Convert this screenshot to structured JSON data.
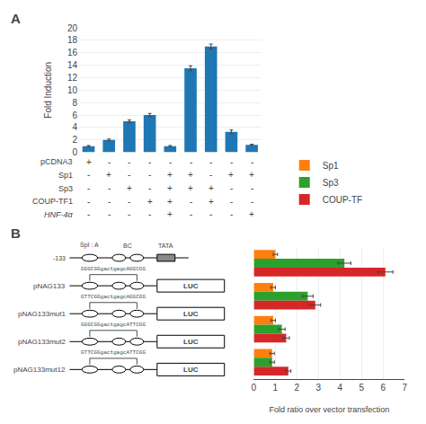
{
  "chart_data": [
    {
      "type": "bar",
      "title": "A",
      "categories": [
        null,
        null,
        null,
        null,
        null,
        null,
        null,
        null,
        null
      ],
      "values": [
        1.0,
        2.0,
        5.0,
        6.0,
        1.0,
        13.5,
        17.0,
        3.3,
        1.2
      ],
      "errors": [
        0.1,
        0.15,
        0.2,
        0.25,
        0.1,
        0.4,
        0.4,
        0.3,
        0.1
      ],
      "ylabel": "Fold Induction",
      "ylim": [
        0,
        20
      ],
      "yticks": [
        0,
        2,
        4,
        6,
        8,
        10,
        12,
        14,
        16,
        18,
        20
      ],
      "grid": true,
      "tick_labels": "y",
      "conditions": [
        {
          "label": "pCDNA3",
          "signs": [
            "+",
            "-",
            "-",
            "-",
            "-",
            "-",
            "-",
            "-",
            "-"
          ]
        },
        {
          "label": "Sp1",
          "signs": [
            "-",
            "+",
            "-",
            "-",
            "+",
            "+",
            "-",
            "+",
            "+"
          ]
        },
        {
          "label": "Sp3",
          "signs": [
            "-",
            "-",
            "+",
            "-",
            "+",
            "+",
            "+",
            "-",
            "-"
          ]
        },
        {
          "label": "COUP-TF1",
          "signs": [
            "-",
            "-",
            "-",
            "+",
            "+",
            "-",
            "+",
            "-",
            "-"
          ]
        },
        {
          "label": "HNF-4α",
          "signs": [
            "-",
            "-",
            "-",
            "-",
            "+",
            "-",
            "-",
            "-",
            "+"
          ]
        }
      ]
    },
    {
      "type": "bar",
      "title": "B",
      "orientation": "horizontal",
      "categories": [
        "pNAG133",
        "pNAG133mut1",
        "pNAG133mut2",
        "pNAG133mut12"
      ],
      "series": [
        {
          "name": "Sp1",
          "values": [
            1.0,
            0.9,
            0.9,
            0.85
          ],
          "errors": [
            0.1,
            0.1,
            0.1,
            0.1
          ]
        },
        {
          "name": "Sp3",
          "values": [
            4.2,
            2.5,
            1.3,
            0.85
          ],
          "errors": [
            0.3,
            0.25,
            0.15,
            0.1
          ]
        },
        {
          "name": "COUP-TF",
          "values": [
            6.1,
            2.85,
            1.5,
            1.6
          ],
          "errors": [
            0.35,
            0.25,
            0.15,
            0.12
          ]
        }
      ],
      "xlabel": "Fold ratio over vector transfection",
      "xlim": [
        0,
        7
      ],
      "xticks": [
        0,
        1,
        2,
        3,
        4,
        5,
        6,
        7
      ],
      "grid": true,
      "legend": "upper right",
      "tick_labels": "x",
      "sequences": [
        "GGGCGGgactgagcAGGCGG",
        "GTTCGGgactgagcAGGCGG",
        "GGGCGGgactgagcATTCGG",
        "GTTCGGgactgagcATTCGG"
      ],
      "diagram": {
        "reference": "-133",
        "sites": [
          "SpI : A",
          "BC",
          "TATA"
        ],
        "reporter": "LUC"
      }
    }
  ]
}
